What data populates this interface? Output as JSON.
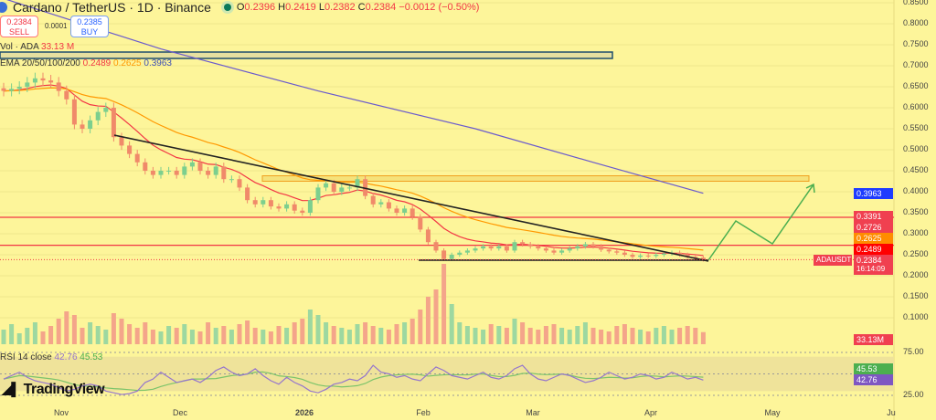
{
  "header": {
    "title": "Cardano / TetherUS · 1D · Binance",
    "open_label": "O",
    "open": "0.2396",
    "high_label": "H",
    "high": "0.2419",
    "low_label": "L",
    "low": "0.2382",
    "close_label": "C",
    "close": "0.2384",
    "change": "−0.0012 (−0.50%)"
  },
  "trade": {
    "sell_price": "0.2384",
    "sell_label": "SELL",
    "spread": "0.0001",
    "buy_price": "0.2385",
    "buy_label": "BUY"
  },
  "indicators": {
    "vol_label": "Vol · ADA",
    "vol_value": "33.13 M",
    "ema_label": "EMA 20/50/100/200",
    "ema_values": [
      "0.2489",
      "0.2625",
      "0.3963"
    ],
    "rsi_label": "RSI 14 close",
    "rsi_value": "42.76",
    "rsi_ma": "45.53"
  },
  "price_labels": {
    "ema200": "0.3963",
    "level1": "0.3391",
    "level2": "0.2726",
    "ema50": "0.2625",
    "ema20": "0.2489",
    "symbol": "ADAUSDT",
    "last": "0.2384",
    "countdown": "16:14:09",
    "volume": "33.13M",
    "rsi_ma": "45.53",
    "rsi": "42.76"
  },
  "colors": {
    "background": "#fdf59a",
    "up": "#7ccf8e",
    "down": "#f08a6a",
    "ema20": "#f23645",
    "ema50": "#ff9800",
    "ema200": "#6a5acd",
    "level": "#f23645",
    "trendline": "#222222",
    "arrow": "#4caf50",
    "rsi": "#9575cd",
    "rsi_ma": "#7cc46a"
  },
  "brand": "TradingView",
  "chart_data": {
    "type": "candlestick",
    "price_axis_ticks": [
      "0.8500",
      "0.8000",
      "0.7500",
      "0.7000",
      "0.6500",
      "0.6000",
      "0.5500",
      "0.5000",
      "0.4500",
      "0.4000",
      "0.3500",
      "0.3000",
      "0.2500",
      "0.2000",
      "0.1500",
      "0.1000"
    ],
    "rsi_axis_ticks": [
      "75.00",
      "25.00"
    ],
    "time_axis_ticks": [
      "Nov",
      "Dec",
      "2026",
      "Feb",
      "Mar",
      "Apr",
      "May",
      "Ju"
    ],
    "ylim": [
      0.08,
      0.86
    ],
    "horizontal_levels": [
      0.3391,
      0.2726
    ],
    "support_line": 0.237,
    "resistance_zone": [
      0.425,
      0.438
    ],
    "closes": [
      0.64,
      0.645,
      0.65,
      0.66,
      0.67,
      0.665,
      0.66,
      0.64,
      0.62,
      0.56,
      0.55,
      0.57,
      0.59,
      0.6,
      0.53,
      0.51,
      0.49,
      0.47,
      0.45,
      0.44,
      0.45,
      0.45,
      0.44,
      0.46,
      0.47,
      0.45,
      0.44,
      0.46,
      0.43,
      0.43,
      0.41,
      0.38,
      0.37,
      0.38,
      0.365,
      0.36,
      0.37,
      0.355,
      0.35,
      0.38,
      0.41,
      0.42,
      0.4,
      0.41,
      0.41,
      0.43,
      0.39,
      0.37,
      0.375,
      0.36,
      0.35,
      0.36,
      0.34,
      0.31,
      0.28,
      0.26,
      0.24,
      0.25,
      0.255,
      0.26,
      0.265,
      0.27,
      0.265,
      0.27,
      0.26,
      0.28,
      0.275,
      0.27,
      0.265,
      0.26,
      0.255,
      0.26,
      0.265,
      0.27,
      0.275,
      0.27,
      0.262,
      0.258,
      0.255,
      0.25,
      0.245,
      0.248,
      0.247,
      0.25,
      0.253,
      0.255,
      0.25,
      0.245,
      0.243,
      0.2384
    ],
    "volumes_m": [
      40,
      55,
      30,
      45,
      60,
      35,
      50,
      70,
      90,
      80,
      45,
      60,
      50,
      40,
      85,
      70,
      55,
      45,
      60,
      40,
      35,
      50,
      45,
      55,
      40,
      35,
      60,
      45,
      50,
      40,
      55,
      65,
      45,
      40,
      35,
      50,
      45,
      60,
      70,
      95,
      80,
      60,
      50,
      45,
      40,
      55,
      60,
      50,
      45,
      40,
      55,
      60,
      70,
      95,
      130,
      150,
      220,
      110,
      60,
      50,
      45,
      40,
      55,
      50,
      45,
      70,
      60,
      45,
      40,
      50,
      55,
      45,
      40,
      50,
      60,
      45,
      40,
      35,
      50,
      55,
      45,
      40,
      35,
      45,
      50,
      40,
      45,
      50,
      45,
      33.13
    ],
    "ema200": [
      [
        0,
        0.86
      ],
      [
        20,
        0.74
      ],
      [
        40,
        0.64
      ],
      [
        60,
        0.55
      ],
      [
        75,
        0.47
      ],
      [
        89,
        0.3963
      ]
    ],
    "rsi": [
      44,
      48,
      52,
      46,
      42,
      40,
      38,
      34,
      30,
      32,
      36,
      38,
      36,
      30,
      28,
      26,
      27,
      30,
      40,
      44,
      52,
      46,
      40,
      42,
      44,
      40,
      46,
      54,
      58,
      52,
      48,
      50,
      56,
      48,
      42,
      38,
      46,
      40,
      36,
      30,
      28,
      32,
      38,
      40,
      44,
      42,
      48,
      60,
      52,
      50,
      46,
      48,
      44,
      42,
      50,
      58,
      54,
      48,
      46,
      44,
      48,
      52,
      46,
      44,
      48,
      56,
      60,
      50,
      44,
      42,
      46,
      50,
      48,
      44,
      40,
      42,
      46,
      52,
      48,
      44,
      46,
      50,
      48,
      44,
      46,
      52,
      48,
      44,
      46,
      42.76
    ]
  }
}
